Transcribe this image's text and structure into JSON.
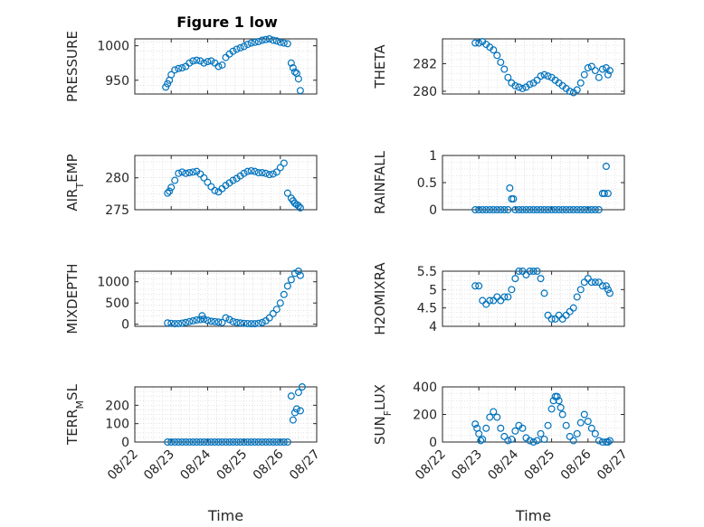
{
  "figure": {
    "title": "Figure 1 low"
  },
  "colors": {
    "marker": "#0072BD",
    "axis": "#262626",
    "grid": "#cfcfcf"
  },
  "chart_data": [
    {
      "type": "scatter",
      "title": "Figure 1 low",
      "ylabel": "PRESSURE",
      "ylabel_sub": null,
      "xlabel": "",
      "ylim": [
        930,
        1010
      ],
      "yticks": [
        950,
        1000
      ],
      "ytick_labels": [
        "950",
        "1000"
      ],
      "xlim": [
        "08/22",
        "08/27"
      ],
      "xticks": [
        "08/22",
        "08/23",
        "08/24",
        "08/25",
        "08/26",
        "08/27"
      ],
      "show_xtick_labels": false,
      "grid": true,
      "series": [
        {
          "x": [
            22.85,
            22.9,
            22.95,
            23.0,
            23.1,
            23.2,
            23.3,
            23.4,
            23.5,
            23.6,
            23.7,
            23.8,
            23.9,
            24.0,
            24.1,
            24.2,
            24.3,
            24.4,
            24.5,
            24.6,
            24.7,
            24.8,
            24.9,
            25.0,
            25.1,
            25.2,
            25.3,
            25.4,
            25.5,
            25.6,
            25.7,
            25.8,
            25.9,
            26.0,
            26.1,
            26.2,
            26.3,
            26.35,
            26.4,
            26.45,
            26.5,
            26.55
          ],
          "y": [
            940,
            945,
            950,
            958,
            965,
            967,
            968,
            970,
            975,
            978,
            979,
            978,
            975,
            977,
            978,
            975,
            970,
            972,
            983,
            988,
            992,
            995,
            997,
            999,
            1002,
            1004,
            1005,
            1006,
            1008,
            1009,
            1010,
            1008,
            1007,
            1005,
            1004,
            1003,
            975,
            968,
            962,
            960,
            952,
            935
          ]
        }
      ]
    },
    {
      "type": "scatter",
      "ylabel": "THETA",
      "ylabel_sub": null,
      "xlabel": "",
      "ylim": [
        279.8,
        283.8
      ],
      "yticks": [
        280,
        282
      ],
      "ytick_labels": [
        "280",
        "282"
      ],
      "xlim": [
        "08/22",
        "08/27"
      ],
      "xticks": [
        "08/22",
        "08/23",
        "08/24",
        "08/25",
        "08/26",
        "08/27"
      ],
      "show_xtick_labels": false,
      "grid": true,
      "series": [
        {
          "x": [
            22.9,
            23.0,
            23.1,
            23.2,
            23.3,
            23.4,
            23.5,
            23.6,
            23.7,
            23.8,
            23.9,
            24.0,
            24.1,
            24.2,
            24.3,
            24.4,
            24.5,
            24.6,
            24.7,
            24.8,
            24.9,
            25.0,
            25.1,
            25.2,
            25.3,
            25.4,
            25.5,
            25.6,
            25.7,
            25.8,
            25.9,
            26.0,
            26.1,
            26.2,
            26.3,
            26.4,
            26.5,
            26.55,
            26.6
          ],
          "y": [
            283.5,
            283.5,
            283.6,
            283.4,
            283.2,
            283.0,
            282.6,
            282.1,
            281.6,
            281.0,
            280.6,
            280.4,
            280.3,
            280.2,
            280.3,
            280.5,
            280.6,
            280.8,
            281.1,
            281.2,
            281.1,
            281.0,
            280.8,
            280.6,
            280.4,
            280.2,
            280.0,
            279.9,
            280.1,
            280.6,
            281.2,
            281.7,
            281.8,
            281.5,
            281.0,
            281.6,
            281.7,
            281.2,
            281.5
          ]
        }
      ]
    },
    {
      "type": "scatter",
      "ylabel": "AIR",
      "ylabel_sub": "T",
      "ylabel_rest": "EMP",
      "xlabel": "",
      "ylim": [
        275,
        283.5
      ],
      "yticks": [
        275,
        280
      ],
      "ytick_labels": [
        "275",
        "280"
      ],
      "xlim": [
        "08/22",
        "08/27"
      ],
      "xticks": [
        "08/22",
        "08/23",
        "08/24",
        "08/25",
        "08/26",
        "08/27"
      ],
      "show_xtick_labels": false,
      "grid": true,
      "series": [
        {
          "x": [
            22.9,
            22.95,
            23.0,
            23.1,
            23.2,
            23.3,
            23.4,
            23.5,
            23.6,
            23.7,
            23.8,
            23.9,
            24.0,
            24.1,
            24.2,
            24.3,
            24.4,
            24.5,
            24.6,
            24.7,
            24.8,
            24.9,
            25.0,
            25.1,
            25.2,
            25.3,
            25.4,
            25.5,
            25.6,
            25.7,
            25.8,
            25.9,
            26.0,
            26.1,
            26.2,
            26.3,
            26.35,
            26.4,
            26.45,
            26.5,
            26.55
          ],
          "y": [
            277.6,
            277.9,
            278.5,
            279.6,
            280.7,
            280.9,
            280.7,
            280.8,
            280.9,
            281.0,
            280.6,
            280.0,
            279.3,
            278.6,
            278.0,
            277.8,
            278.3,
            278.8,
            279.2,
            279.6,
            279.9,
            280.3,
            280.7,
            281.0,
            281.1,
            281.0,
            280.8,
            280.8,
            280.7,
            280.5,
            280.6,
            280.9,
            281.6,
            282.3,
            277.6,
            276.8,
            276.4,
            276.0,
            275.8,
            275.6,
            275.3
          ]
        }
      ]
    },
    {
      "type": "scatter",
      "ylabel": "RAINFALL",
      "ylabel_sub": null,
      "xlabel": "",
      "ylim": [
        0,
        1
      ],
      "yticks": [
        0,
        0.5,
        1
      ],
      "ytick_labels": [
        "0",
        "0.5",
        "1"
      ],
      "xlim": [
        "08/22",
        "08/27"
      ],
      "xticks": [
        "08/22",
        "08/23",
        "08/24",
        "08/25",
        "08/26",
        "08/27"
      ],
      "show_xtick_labels": false,
      "grid": true,
      "series": [
        {
          "x": [
            22.9,
            23.0,
            23.1,
            23.2,
            23.3,
            23.4,
            23.5,
            23.6,
            23.7,
            23.8,
            23.85,
            23.9,
            23.95,
            24.0,
            24.1,
            24.2,
            24.3,
            24.4,
            24.5,
            24.6,
            24.7,
            24.8,
            24.9,
            25.0,
            25.1,
            25.2,
            25.3,
            25.4,
            25.5,
            25.6,
            25.7,
            25.8,
            25.9,
            26.0,
            26.1,
            26.2,
            26.3,
            26.4,
            26.45,
            26.5,
            26.55
          ],
          "y": [
            0,
            0,
            0,
            0,
            0,
            0,
            0,
            0,
            0,
            0,
            0.4,
            0.2,
            0.2,
            0,
            0,
            0,
            0,
            0,
            0,
            0,
            0,
            0,
            0,
            0,
            0,
            0,
            0,
            0,
            0,
            0,
            0,
            0,
            0,
            0,
            0,
            0,
            0,
            0.3,
            0.3,
            0.8,
            0.3
          ]
        }
      ]
    },
    {
      "type": "scatter",
      "ylabel": "MIXDEPTH",
      "ylabel_sub": null,
      "xlabel": "",
      "ylim": [
        -50,
        1250
      ],
      "yticks": [
        0,
        500,
        1000
      ],
      "ytick_labels": [
        "0",
        "500",
        "1000"
      ],
      "xlim": [
        "08/22",
        "08/27"
      ],
      "xticks": [
        "08/22",
        "08/23",
        "08/24",
        "08/25",
        "08/26",
        "08/27"
      ],
      "show_xtick_labels": false,
      "grid": true,
      "series": [
        {
          "x": [
            22.9,
            23.0,
            23.1,
            23.2,
            23.3,
            23.4,
            23.5,
            23.6,
            23.7,
            23.8,
            23.85,
            23.9,
            24.0,
            24.1,
            24.2,
            24.3,
            24.4,
            24.5,
            24.6,
            24.7,
            24.8,
            24.9,
            25.0,
            25.1,
            25.2,
            25.3,
            25.4,
            25.5,
            25.6,
            25.7,
            25.8,
            25.9,
            26.0,
            26.1,
            26.2,
            26.3,
            26.4,
            26.5,
            26.55
          ],
          "y": [
            30,
            20,
            10,
            15,
            25,
            40,
            60,
            80,
            100,
            110,
            200,
            120,
            90,
            70,
            60,
            50,
            40,
            150,
            110,
            60,
            40,
            30,
            20,
            15,
            10,
            10,
            20,
            40,
            80,
            150,
            250,
            350,
            500,
            700,
            900,
            1050,
            1200,
            1250,
            1150
          ]
        }
      ]
    },
    {
      "type": "scatter",
      "ylabel": "H2OMIXRA",
      "ylabel_sub": null,
      "xlabel": "",
      "ylim": [
        4,
        5.5
      ],
      "yticks": [
        4,
        4.5,
        5,
        5.5
      ],
      "ytick_labels": [
        "4",
        "4.5",
        "5",
        "5.5"
      ],
      "xlim": [
        "08/22",
        "08/27"
      ],
      "xticks": [
        "08/22",
        "08/23",
        "08/24",
        "08/25",
        "08/26",
        "08/27"
      ],
      "show_xtick_labels": false,
      "grid": true,
      "series": [
        {
          "x": [
            22.9,
            23.0,
            23.1,
            23.2,
            23.3,
            23.4,
            23.5,
            23.6,
            23.7,
            23.8,
            23.9,
            24.0,
            24.1,
            24.2,
            24.3,
            24.4,
            24.5,
            24.6,
            24.7,
            24.8,
            24.9,
            25.0,
            25.1,
            25.2,
            25.3,
            25.4,
            25.5,
            25.6,
            25.7,
            25.8,
            25.9,
            26.0,
            26.1,
            26.2,
            26.3,
            26.4,
            26.5,
            26.55,
            26.6
          ],
          "y": [
            5.1,
            5.1,
            4.7,
            4.6,
            4.7,
            4.7,
            4.8,
            4.7,
            4.8,
            4.8,
            5.0,
            5.3,
            5.5,
            5.5,
            5.4,
            5.5,
            5.5,
            5.5,
            5.3,
            4.9,
            4.3,
            4.2,
            4.2,
            4.3,
            4.2,
            4.3,
            4.4,
            4.5,
            4.8,
            5.0,
            5.2,
            5.3,
            5.2,
            5.2,
            5.2,
            5.1,
            5.1,
            5.0,
            4.9
          ]
        }
      ]
    },
    {
      "type": "scatter",
      "ylabel": "TERR",
      "ylabel_sub": "M",
      "ylabel_rest": "SL",
      "xlabel": "Time",
      "ylim": [
        0,
        300
      ],
      "yticks": [
        0,
        100,
        200
      ],
      "ytick_labels": [
        "0",
        "100",
        "200"
      ],
      "xlim": [
        "08/22",
        "08/27"
      ],
      "xticks": [
        "08/22",
        "08/23",
        "08/24",
        "08/25",
        "08/26",
        "08/27"
      ],
      "show_xtick_labels": true,
      "grid": true,
      "series": [
        {
          "x": [
            22.9,
            23.0,
            23.1,
            23.2,
            23.3,
            23.4,
            23.5,
            23.6,
            23.7,
            23.8,
            23.9,
            24.0,
            24.1,
            24.2,
            24.3,
            24.4,
            24.5,
            24.6,
            24.7,
            24.8,
            24.9,
            25.0,
            25.1,
            25.2,
            25.3,
            25.4,
            25.5,
            25.6,
            25.7,
            25.8,
            25.9,
            26.0,
            26.1,
            26.2,
            26.3,
            26.35,
            26.4,
            26.45,
            26.5,
            26.55,
            26.6
          ],
          "y": [
            0,
            0,
            0,
            0,
            0,
            0,
            0,
            0,
            0,
            0,
            0,
            0,
            0,
            0,
            0,
            0,
            0,
            0,
            0,
            0,
            0,
            0,
            0,
            0,
            0,
            0,
            0,
            0,
            0,
            0,
            0,
            0,
            0,
            0,
            250,
            120,
            160,
            180,
            270,
            170,
            300
          ]
        }
      ]
    },
    {
      "type": "scatter",
      "ylabel": "SUN",
      "ylabel_sub": "F",
      "ylabel_rest": "LUX",
      "xlabel": "Time",
      "ylim": [
        0,
        400
      ],
      "yticks": [
        0,
        200,
        400
      ],
      "ytick_labels": [
        "0",
        "200",
        "400"
      ],
      "xlim": [
        "08/22",
        "08/27"
      ],
      "xticks": [
        "08/22",
        "08/23",
        "08/24",
        "08/25",
        "08/26",
        "08/27"
      ],
      "show_xtick_labels": true,
      "grid": true,
      "series": [
        {
          "x": [
            22.9,
            22.95,
            23.0,
            23.05,
            23.1,
            23.2,
            23.3,
            23.4,
            23.5,
            23.6,
            23.7,
            23.8,
            23.9,
            24.0,
            24.1,
            24.2,
            24.3,
            24.4,
            24.5,
            24.6,
            24.7,
            24.8,
            24.9,
            25.0,
            25.05,
            25.1,
            25.15,
            25.2,
            25.25,
            25.3,
            25.4,
            25.5,
            25.6,
            25.7,
            25.8,
            25.9,
            26.0,
            26.1,
            26.2,
            26.3,
            26.4,
            26.5,
            26.55,
            26.6
          ],
          "y": [
            130,
            100,
            60,
            10,
            20,
            100,
            180,
            220,
            180,
            100,
            40,
            10,
            20,
            80,
            120,
            100,
            30,
            10,
            0,
            10,
            60,
            20,
            120,
            240,
            300,
            330,
            330,
            300,
            250,
            200,
            120,
            40,
            10,
            60,
            140,
            200,
            150,
            100,
            60,
            10,
            0,
            0,
            0,
            10
          ]
        }
      ]
    }
  ]
}
